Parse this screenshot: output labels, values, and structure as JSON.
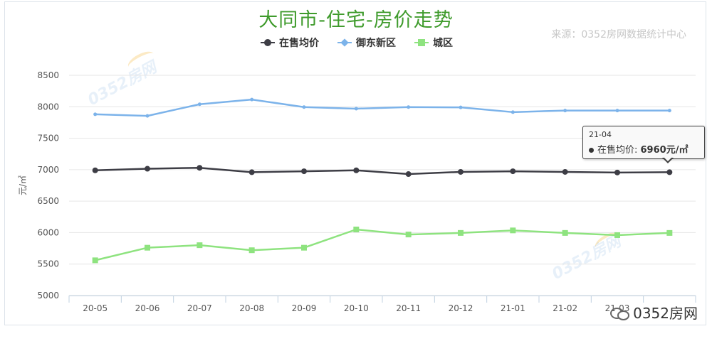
{
  "title": "大同市-住宅-房价走势",
  "source": "来源：0352房网数据统计中心",
  "badge": "0352房网",
  "watermark": "0352房网",
  "colors": {
    "title": "#3f9b2c",
    "series_avg": "#3d3d45",
    "series_yudong": "#7cb3ea",
    "series_chengqu": "#8ee37f",
    "grid": "#e6e6e6"
  },
  "tooltip": {
    "date": "21-04",
    "series_label": "在售均价: ",
    "value": "6960元/㎡"
  },
  "chart_data": {
    "type": "line",
    "title": "大同市-住宅-房价走势",
    "xlabel": "",
    "ylabel": "元/㎡",
    "ylim": [
      5000,
      8500
    ],
    "yticks": [
      5000,
      5500,
      6000,
      6500,
      7000,
      7500,
      8000,
      8500
    ],
    "grid": true,
    "legend_position": "top-center",
    "categories": [
      "20-05",
      "20-06",
      "20-07",
      "20-08",
      "20-09",
      "20-10",
      "20-11",
      "20-12",
      "21-01",
      "21-02",
      "21-03",
      "21-04"
    ],
    "x_tick_labels": [
      "20-05",
      "20-06",
      "20-07",
      "20-08",
      "20-09",
      "20-10",
      "20-11",
      "20-12",
      "21-01",
      "21-02",
      "21-03",
      ""
    ],
    "series": [
      {
        "name": "在售均价",
        "marker": "circle",
        "color": "#3d3d45",
        "values": [
          6990,
          7015,
          7030,
          6960,
          6975,
          6990,
          6930,
          6965,
          6975,
          6965,
          6955,
          6960
        ]
      },
      {
        "name": "御东新区",
        "marker": "diamond",
        "color": "#7cb3ea",
        "values": [
          7880,
          7855,
          8040,
          8115,
          7995,
          7970,
          7995,
          7990,
          7915,
          7940,
          7940,
          7940
        ]
      },
      {
        "name": "城区",
        "marker": "square",
        "color": "#8ee37f",
        "values": [
          5560,
          5760,
          5800,
          5720,
          5760,
          6050,
          5970,
          5995,
          6035,
          5995,
          5960,
          5995
        ]
      }
    ]
  }
}
